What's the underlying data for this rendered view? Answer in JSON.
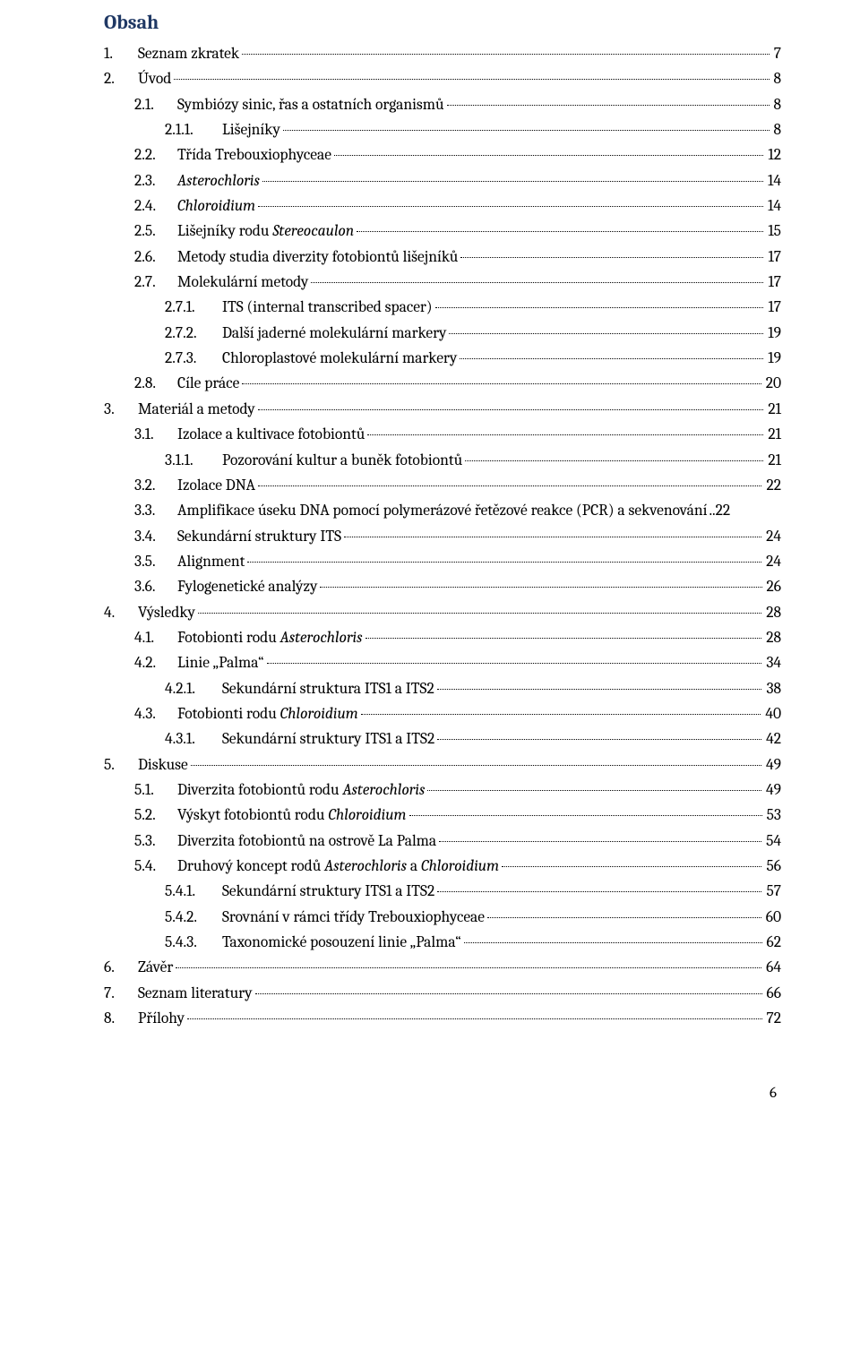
{
  "heading": "Obsah",
  "page_number": "6",
  "colors": {
    "heading": "#1f3864",
    "text": "#000000",
    "background": "#ffffff",
    "leader": "#000000"
  },
  "typography": {
    "heading_fontsize_pt": 16,
    "heading_weight": "bold",
    "body_fontsize_pt": 12,
    "font_family": "Cambria"
  },
  "entries": [
    {
      "level": 0,
      "num": "1.",
      "text": "Seznam zkratek",
      "page": "7"
    },
    {
      "level": 0,
      "num": "2.",
      "text": "Úvod",
      "page": "8"
    },
    {
      "level": 1,
      "num": "2.1.",
      "text": "Symbiózy sinic, řas a ostatních organismů",
      "page": "8"
    },
    {
      "level": 2,
      "num": "2.1.1.",
      "text": "Lišejníky",
      "page": "8"
    },
    {
      "level": 1,
      "num": "2.2.",
      "text": "Třída Trebouxiophyceae",
      "page": "12"
    },
    {
      "level": 1,
      "num": "2.3.",
      "text_italic": "Asterochloris",
      "page": "14"
    },
    {
      "level": 1,
      "num": "2.4.",
      "text_italic": "Chloroidium",
      "page": "14"
    },
    {
      "level": 1,
      "num": "2.5.",
      "text": "Lišejníky rodu ",
      "text_italic_after": "Stereocaulon",
      "page": "15"
    },
    {
      "level": 1,
      "num": "2.6.",
      "text": "Metody studia diverzity fotobiontů lišejníků",
      "page": "17"
    },
    {
      "level": 1,
      "num": "2.7.",
      "text": "Molekulární metody",
      "page": "17"
    },
    {
      "level": 2,
      "num": "2.7.1.",
      "text": "ITS (internal transcribed spacer)",
      "page": "17"
    },
    {
      "level": 2,
      "num": "2.7.2.",
      "text": "Další jaderné molekulární markery",
      "page": "19"
    },
    {
      "level": 2,
      "num": "2.7.3.",
      "text": "Chloroplastové molekulární markery",
      "page": "19"
    },
    {
      "level": 1,
      "num": "2.8.",
      "text": "Cíle práce",
      "page": "20"
    },
    {
      "level": 0,
      "num": "3.",
      "text": "Materiál a metody",
      "page": "21"
    },
    {
      "level": 1,
      "num": "3.1.",
      "text": "Izolace a kultivace fotobiontů",
      "page": "21"
    },
    {
      "level": 2,
      "num": "3.1.1.",
      "text": "Pozorování kultur a buněk fotobiontů",
      "page": "21"
    },
    {
      "level": 1,
      "num": "3.2.",
      "text": "Izolace DNA",
      "page": "22"
    },
    {
      "level": 1,
      "num": "3.3.",
      "text": "Amplifikace úseku DNA pomocí polymerázové řetězové reakce (PCR) a sekvenování",
      "page": "..22"
    },
    {
      "level": 1,
      "num": "3.4.",
      "text": "Sekundární struktury ITS",
      "page": "24"
    },
    {
      "level": 1,
      "num": "3.5.",
      "text": "Alignment",
      "page": "24"
    },
    {
      "level": 1,
      "num": "3.6.",
      "text": "Fylogenetické analýzy",
      "page": "26"
    },
    {
      "level": 0,
      "num": "4.",
      "text": "Výsledky",
      "page": "28"
    },
    {
      "level": 1,
      "num": "4.1.",
      "text": "Fotobionti rodu ",
      "text_italic_after": "Asterochloris",
      "page": "28"
    },
    {
      "level": 1,
      "num": "4.2.",
      "text": "Linie „Palma“",
      "page": "34"
    },
    {
      "level": 2,
      "num": "4.2.1.",
      "text": "Sekundární struktura ITS1 a ITS2",
      "page": "38"
    },
    {
      "level": 1,
      "num": "4.3.",
      "text": "Fotobionti rodu ",
      "text_italic_after": "Chloroidium",
      "page": "40"
    },
    {
      "level": 2,
      "num": "4.3.1.",
      "text": "Sekundární struktury ITS1 a ITS2",
      "page": "42"
    },
    {
      "level": 0,
      "num": "5.",
      "text": "Diskuse",
      "page": "49"
    },
    {
      "level": 1,
      "num": "5.1.",
      "text": "Diverzita fotobiontů rodu ",
      "text_italic_after": "Asterochloris",
      "page": "49"
    },
    {
      "level": 1,
      "num": "5.2.",
      "text": "Výskyt fotobiontů rodu ",
      "text_italic_after": "Chloroidium",
      "page": "53"
    },
    {
      "level": 1,
      "num": "5.3.",
      "text": "Diverzita fotobiontů na ostrově La Palma",
      "page": "54"
    },
    {
      "level": 1,
      "num": "5.4.",
      "text": "Druhový koncept rodů ",
      "text_italic_after": "Asterochloris",
      "text_after": " a ",
      "text_italic_after2": "Chloroidium",
      "page": "56"
    },
    {
      "level": 2,
      "num": "5.4.1.",
      "text": "Sekundární struktury ITS1 a ITS2",
      "page": "57"
    },
    {
      "level": 2,
      "num": "5.4.2.",
      "text": "Srovnání v rámci třídy Trebouxiophyceae",
      "page": "60"
    },
    {
      "level": 2,
      "num": "5.4.3.",
      "text": "Taxonomické posouzení linie „Palma“",
      "page": "62"
    },
    {
      "level": 0,
      "num": "6.",
      "text": "Závěr",
      "page": "64"
    },
    {
      "level": 0,
      "num": "7.",
      "text": "Seznam literatury",
      "page": "66"
    },
    {
      "level": 0,
      "num": "8.",
      "text": "Přílohy",
      "page": "72"
    }
  ]
}
